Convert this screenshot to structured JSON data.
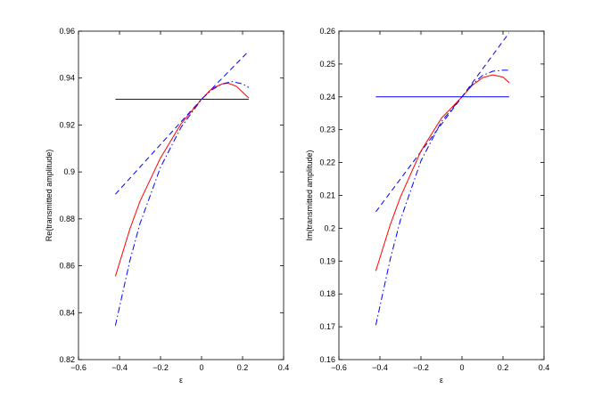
{
  "chart_data": [
    {
      "type": "line",
      "title": "",
      "xlabel": "ε",
      "ylabel": "Re(transmitted amplitude)",
      "xlim": [
        -0.6,
        0.4
      ],
      "ylim": [
        0.82,
        0.96
      ],
      "xticks": [
        -0.6,
        -0.4,
        -0.2,
        0,
        0.2,
        0.4
      ],
      "xtick_labels": [
        "−0.6",
        "−0.4",
        "−0.2",
        "0",
        "0.2",
        "0.4"
      ],
      "yticks": [
        0.82,
        0.84,
        0.86,
        0.88,
        0.9,
        0.92,
        0.94,
        0.96
      ],
      "ytick_labels": [
        "0.82",
        "0.84",
        "0.86",
        "0.88",
        "0.9",
        "0.92",
        "0.94",
        "0.96"
      ],
      "grid": false,
      "box": true,
      "series": [
        {
          "color": "#0000ff",
          "dash": "solid",
          "x": [
            -0.42,
            0.23
          ],
          "y": [
            0.931,
            0.931
          ]
        },
        {
          "color": "#0000ff",
          "dash": "dashed",
          "x": [
            -0.42,
            0.0,
            0.23
          ],
          "y": [
            0.8905,
            0.931,
            0.9515
          ]
        },
        {
          "color": "#ff0000",
          "dash": "solid",
          "x": [
            -0.42,
            -0.35,
            -0.3,
            -0.2,
            -0.1,
            0.0,
            0.05,
            0.1,
            0.13,
            0.17,
            0.2,
            0.23
          ],
          "y": [
            0.8555,
            0.8755,
            0.8875,
            0.906,
            0.9205,
            0.931,
            0.9355,
            0.9375,
            0.9378,
            0.9365,
            0.934,
            0.9315
          ]
        },
        {
          "color": "#0000ff",
          "dash": "dashdot",
          "x": [
            -0.42,
            -0.35,
            -0.3,
            -0.2,
            -0.1,
            0.0,
            0.05,
            0.1,
            0.15,
            0.2,
            0.23
          ],
          "y": [
            0.8345,
            0.862,
            0.878,
            0.902,
            0.919,
            0.931,
            0.935,
            0.9375,
            0.9385,
            0.9375,
            0.936
          ]
        }
      ]
    },
    {
      "type": "line",
      "title": "",
      "xlabel": "ε",
      "ylabel": "Im(transmitted amplitude)",
      "xlim": [
        -0.6,
        0.4
      ],
      "ylim": [
        0.16,
        0.26
      ],
      "xticks": [
        -0.6,
        -0.4,
        -0.2,
        0,
        0.2,
        0.4
      ],
      "xtick_labels": [
        "−0.6",
        "−0.4",
        "−0.2",
        "0",
        "0.2",
        "0.4"
      ],
      "yticks": [
        0.16,
        0.17,
        0.18,
        0.19,
        0.2,
        0.21,
        0.22,
        0.23,
        0.24,
        0.25,
        0.26
      ],
      "ytick_labels": [
        "0.16",
        "0.17",
        "0.18",
        "0.19",
        "0.2",
        "0.21",
        "0.22",
        "0.23",
        "0.24",
        "0.25",
        "0.26"
      ],
      "grid": false,
      "box": true,
      "series": [
        {
          "color": "#0000ff",
          "dash": "solid",
          "x": [
            -0.42,
            0.23
          ],
          "y": [
            0.24,
            0.24
          ]
        },
        {
          "color": "#0000ff",
          "dash": "dashed",
          "x": [
            -0.42,
            0.0,
            0.23
          ],
          "y": [
            0.205,
            0.24,
            0.2595
          ]
        },
        {
          "color": "#ff0000",
          "dash": "solid",
          "x": [
            -0.42,
            -0.35,
            -0.3,
            -0.2,
            -0.1,
            0.0,
            0.05,
            0.1,
            0.15,
            0.2,
            0.23
          ],
          "y": [
            0.187,
            0.201,
            0.2095,
            0.2235,
            0.2335,
            0.24,
            0.2435,
            0.2458,
            0.2467,
            0.246,
            0.2443
          ]
        },
        {
          "color": "#0000ff",
          "dash": "dashdot",
          "x": [
            -0.42,
            -0.35,
            -0.3,
            -0.2,
            -0.1,
            0.0,
            0.05,
            0.1,
            0.15,
            0.2,
            0.23
          ],
          "y": [
            0.1705,
            0.1905,
            0.2025,
            0.2205,
            0.2325,
            0.24,
            0.2438,
            0.2465,
            0.2478,
            0.2481,
            0.2481
          ]
        }
      ]
    }
  ]
}
